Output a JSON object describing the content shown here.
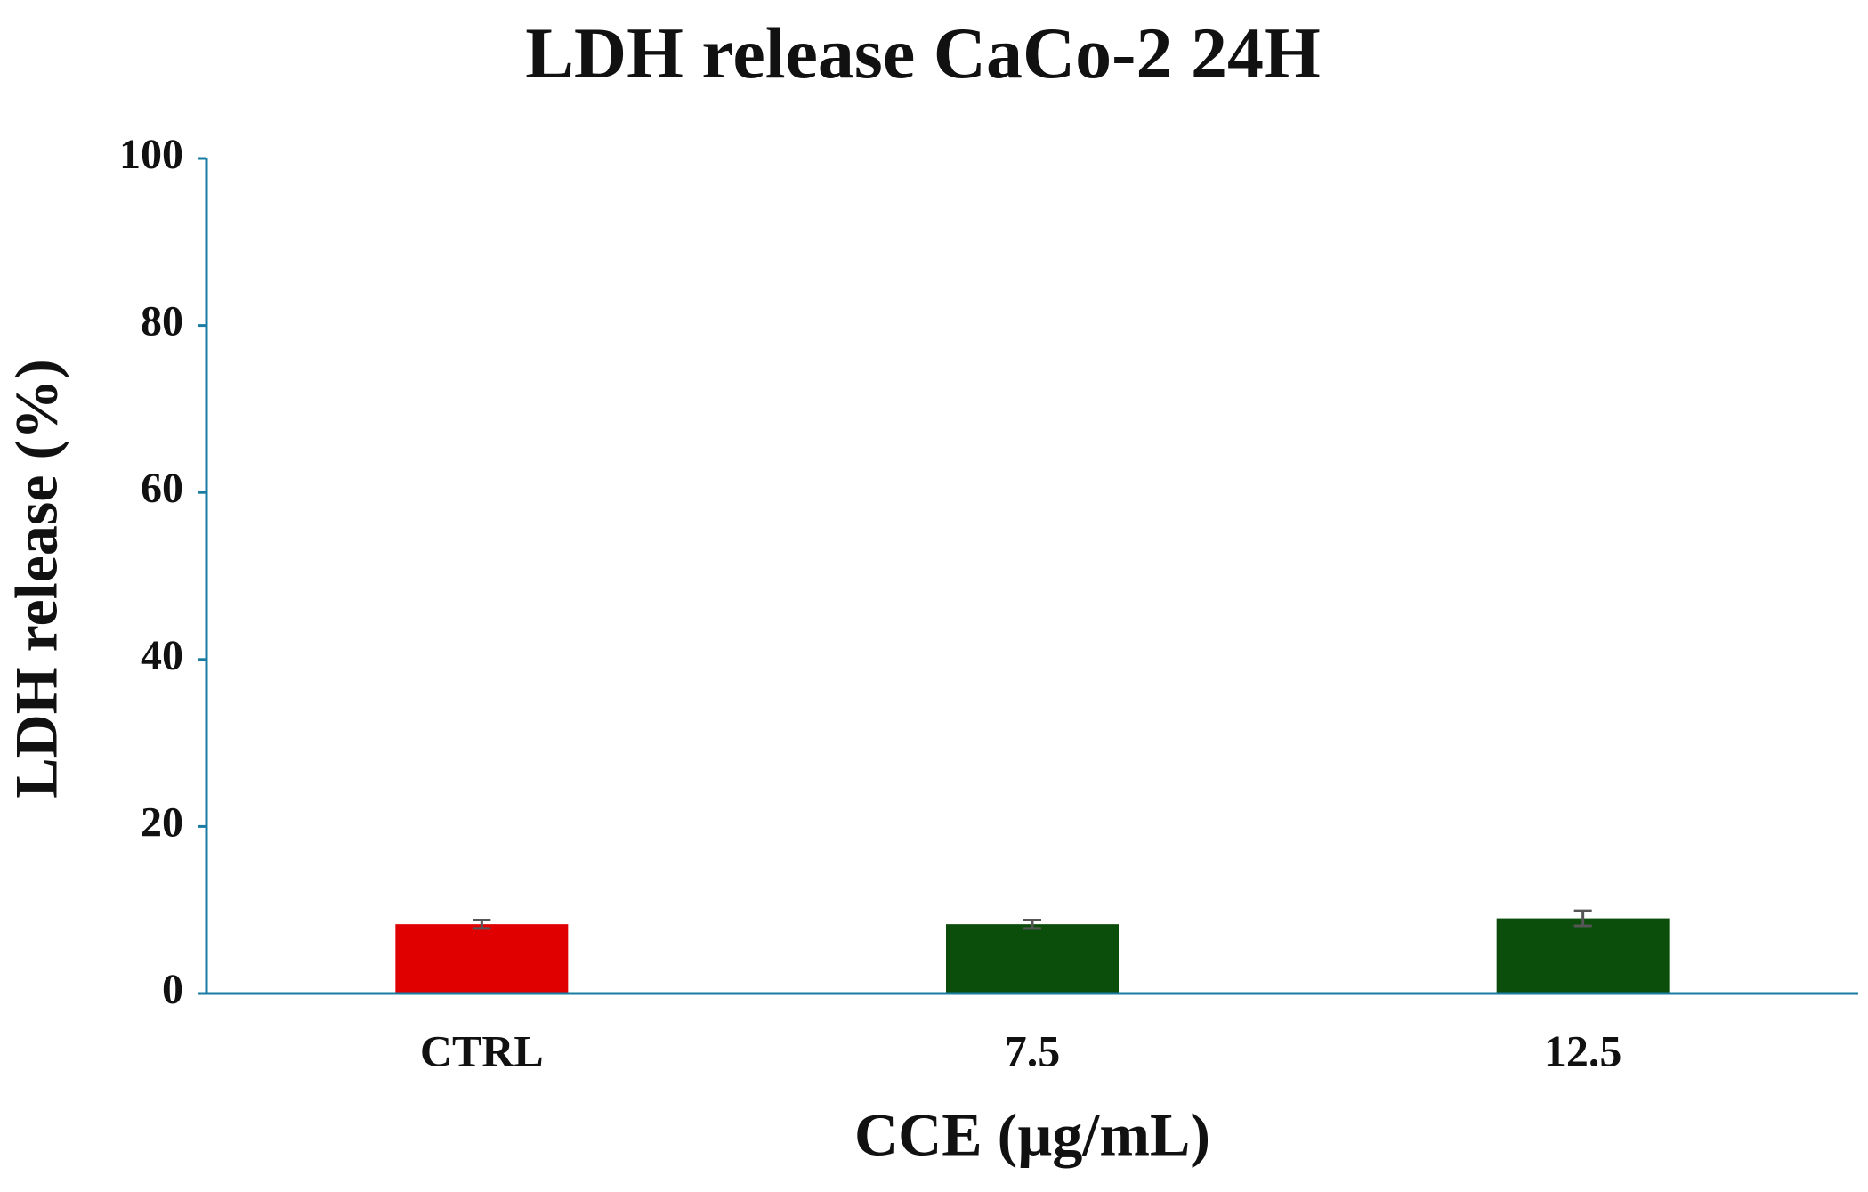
{
  "chart_data": {
    "type": "bar",
    "title": "LDH release CaCo-2 24H",
    "x_label": "CCE (µg/mL)",
    "y_label": "LDH release (%)",
    "categories": [
      "CTRL",
      "7.5",
      "12.5"
    ],
    "values": [
      8.3,
      8.3,
      9.0
    ],
    "errors": [
      0.5,
      0.5,
      0.9
    ],
    "colors": [
      "#e00000",
      "#0b4d0b",
      "#0b4d0b"
    ],
    "ylim": [
      0,
      100
    ],
    "yticks": [
      0,
      20,
      40,
      60,
      80,
      100
    ],
    "grid": false
  }
}
